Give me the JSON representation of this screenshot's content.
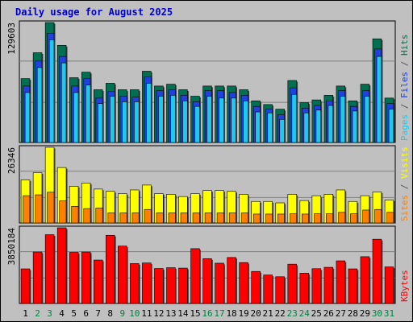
{
  "chart_data": {
    "type": "bar",
    "title": "Daily usage for August 2025",
    "categories": [
      "1",
      "2",
      "3",
      "4",
      "5",
      "6",
      "7",
      "8",
      "9",
      "10",
      "11",
      "12",
      "13",
      "14",
      "15",
      "16",
      "17",
      "18",
      "19",
      "20",
      "21",
      "22",
      "23",
      "24",
      "25",
      "26",
      "27",
      "28",
      "29",
      "30",
      "31"
    ],
    "weekend_days": [
      "2",
      "3",
      "9",
      "10",
      "16",
      "17",
      "23",
      "24",
      "30",
      "31"
    ],
    "colors": {
      "title": "#0000cc",
      "background": "#c0c0c0",
      "grid": "#808080",
      "weekday_label": "#000000",
      "weekend_label": "#008040",
      "hits": "#007050",
      "files": "#2040e0",
      "pages": "#20c8f0",
      "visits": "#ffff00",
      "sites": "#ff8000",
      "kbytes": "#ff0000"
    },
    "panels": [
      {
        "id": "hits-files-pages",
        "max_label": "129603",
        "ylim": [
          0,
          129603
        ],
        "right_label": [
          {
            "text": "Pages",
            "color": "#20c8f0"
          },
          {
            "text": " / ",
            "color": "#555555"
          },
          {
            "text": "Files",
            "color": "#2040e0"
          },
          {
            "text": " / ",
            "color": "#555555"
          },
          {
            "text": "Hits",
            "color": "#007050"
          }
        ],
        "series": [
          {
            "name": "Hits",
            "color": "#007050",
            "values": [
              69000,
              97000,
              129603,
              105000,
              70000,
              76000,
              57000,
              64000,
              57000,
              57000,
              77000,
              61000,
              63000,
              57000,
              50000,
              61000,
              61000,
              61000,
              57000,
              45000,
              41000,
              36000,
              67000,
              43000,
              46000,
              51000,
              61000,
              45000,
              63000,
              112000,
              48000
            ]
          },
          {
            "name": "Files",
            "color": "#2040e0",
            "values": [
              61000,
              88000,
              118000,
              93000,
              61000,
              69000,
              48000,
              55000,
              50000,
              49000,
              71000,
              56000,
              57000,
              51000,
              44000,
              56000,
              56000,
              54000,
              51000,
              39000,
              36000,
              30000,
              59000,
              37000,
              40000,
              45000,
              56000,
              39000,
              56000,
              101000,
              42000
            ]
          },
          {
            "name": "Pages",
            "color": "#20c8f0",
            "values": [
              54000,
              81000,
              111000,
              86000,
              54000,
              62000,
              42000,
              50000,
              44000,
              44000,
              64000,
              50000,
              51000,
              45000,
              39000,
              50000,
              48000,
              48000,
              45000,
              33000,
              32000,
              25000,
              52000,
              32000,
              35000,
              40000,
              50000,
              34000,
              50000,
              93000,
              36000
            ]
          }
        ]
      },
      {
        "id": "visits-sites",
        "max_label": "26346",
        "ylim": [
          0,
          26346
        ],
        "right_label": [
          {
            "text": "Sites",
            "color": "#ff8000"
          },
          {
            "text": " / ",
            "color": "#555555"
          },
          {
            "text": "Visits",
            "color": "#ffff00"
          }
        ],
        "series": [
          {
            "name": "Visits",
            "color": "#ffff00",
            "values": [
              15000,
              17500,
              26346,
              19300,
              12800,
              13900,
              11800,
              11000,
              10200,
              11500,
              13200,
              10200,
              10000,
              9200,
              10200,
              11300,
              11300,
              11000,
              10000,
              7500,
              7500,
              7000,
              10000,
              7800,
              9500,
              10000,
              11500,
              7500,
              9500,
              10800,
              8000
            ]
          },
          {
            "name": "Sites",
            "color": "#ff8000",
            "values": [
              9500,
              9800,
              10700,
              7700,
              5800,
              5000,
              5200,
              3500,
              3500,
              3500,
              4700,
              3500,
              3500,
              3500,
              3500,
              3500,
              3500,
              3500,
              3500,
              3100,
              3100,
              3100,
              3200,
              3100,
              3200,
              3200,
              3700,
              3200,
              4500,
              4700,
              3700
            ]
          }
        ]
      },
      {
        "id": "kbytes",
        "max_label": "3850184",
        "ylim": [
          0,
          3850184
        ],
        "right_label": [
          {
            "text": "KBytes",
            "color": "#ff0000"
          }
        ],
        "series": [
          {
            "name": "KBytes",
            "color": "#ff0000",
            "values": [
              1760000,
              2620000,
              3500000,
              3850184,
              2600000,
              2620000,
              2210000,
              3470000,
              2920000,
              2030000,
              2060000,
              1780000,
              1820000,
              1800000,
              2790000,
              2280000,
              2050000,
              2340000,
              2080000,
              1630000,
              1450000,
              1360000,
              2000000,
              1540000,
              1770000,
              1840000,
              2170000,
              1760000,
              2380000,
              3270000,
              1860000
            ]
          }
        ]
      }
    ]
  }
}
